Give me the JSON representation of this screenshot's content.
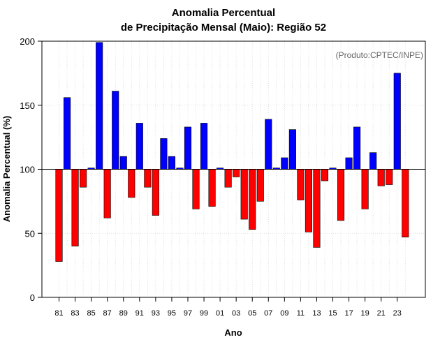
{
  "chart_data": {
    "type": "bar",
    "title_line1": "Anomalia Percentual",
    "title_line2": "de Precipitação Mensal (Maio): Região 52",
    "xlabel": "Ano",
    "ylabel": "Anomalia Percentual (%)",
    "credit": "(Produto:CPTEC/INPE)",
    "baseline": 100,
    "ylim": [
      0,
      200
    ],
    "yticks": [
      0,
      50,
      100,
      150,
      200
    ],
    "xtick_labels": [
      "81",
      "83",
      "85",
      "87",
      "89",
      "91",
      "93",
      "95",
      "97",
      "99",
      "01",
      "03",
      "05",
      "07",
      "09",
      "11",
      "13",
      "15",
      "17",
      "19",
      "21",
      "23"
    ],
    "categories": [
      "1981",
      "1982",
      "1983",
      "1984",
      "1985",
      "1986",
      "1987",
      "1988",
      "1989",
      "1990",
      "1991",
      "1992",
      "1993",
      "1994",
      "1995",
      "1996",
      "1997",
      "1998",
      "1999",
      "2000",
      "2001",
      "2002",
      "2003",
      "2004",
      "2005",
      "2006",
      "2007",
      "2008",
      "2009",
      "2010",
      "2011",
      "2012",
      "2013",
      "2014",
      "2015",
      "2016",
      "2017",
      "2018",
      "2019",
      "2020",
      "2021",
      "2022",
      "2023",
      "2024"
    ],
    "values": [
      28,
      156,
      40,
      86,
      101,
      199,
      62,
      161,
      110,
      78,
      136,
      86,
      64,
      124,
      110,
      101,
      133,
      69,
      136,
      71,
      101,
      86,
      94,
      61,
      53,
      75,
      139,
      101,
      109,
      131,
      76,
      51,
      39,
      91,
      101,
      60,
      109,
      133,
      69,
      113,
      87,
      88,
      175,
      47
    ],
    "colors": {
      "above": "#0000ff",
      "below": "#ff0000"
    }
  }
}
